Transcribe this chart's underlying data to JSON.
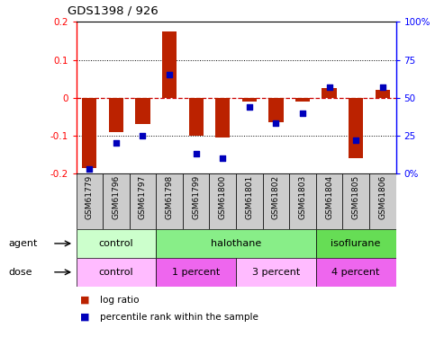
{
  "title": "GDS1398 / 926",
  "samples": [
    "GSM61779",
    "GSM61796",
    "GSM61797",
    "GSM61798",
    "GSM61799",
    "GSM61800",
    "GSM61801",
    "GSM61802",
    "GSM61803",
    "GSM61804",
    "GSM61805",
    "GSM61806"
  ],
  "log_ratio": [
    -0.185,
    -0.09,
    -0.07,
    0.175,
    -0.1,
    -0.105,
    -0.01,
    -0.065,
    -0.01,
    0.025,
    -0.16,
    0.02
  ],
  "percentile_rank": [
    3,
    20,
    25,
    65,
    13,
    10,
    44,
    33,
    40,
    57,
    22,
    57
  ],
  "agent_groups": [
    {
      "label": "control",
      "start": 0,
      "end": 3,
      "color": "#ccffcc"
    },
    {
      "label": "halothane",
      "start": 3,
      "end": 9,
      "color": "#88ee88"
    },
    {
      "label": "isoflurane",
      "start": 9,
      "end": 12,
      "color": "#66dd55"
    }
  ],
  "dose_groups": [
    {
      "label": "control",
      "start": 0,
      "end": 3,
      "color": "#ffbbff"
    },
    {
      "label": "1 percent",
      "start": 3,
      "end": 6,
      "color": "#ee66ee"
    },
    {
      "label": "3 percent",
      "start": 6,
      "end": 9,
      "color": "#ffbbff"
    },
    {
      "label": "4 percent",
      "start": 9,
      "end": 12,
      "color": "#ee66ee"
    }
  ],
  "ylim_left": [
    -0.2,
    0.2
  ],
  "ylim_right": [
    0,
    100
  ],
  "bar_color": "#bb2200",
  "dot_color": "#0000bb",
  "zero_line_color": "#cc0000",
  "background_color": "#ffffff",
  "legend_items": [
    "log ratio",
    "percentile rank within the sample"
  ],
  "tick_bg_color": "#cccccc"
}
